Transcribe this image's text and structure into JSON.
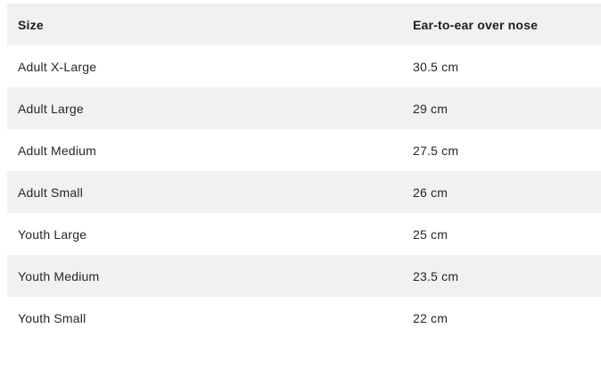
{
  "table": {
    "columns": [
      {
        "key": "size",
        "label": "Size"
      },
      {
        "key": "measurement",
        "label": "Ear-to-ear over nose"
      }
    ],
    "rows": [
      {
        "size": "Adult X-Large",
        "measurement": "30.5 cm"
      },
      {
        "size": "Adult Large",
        "measurement": "29 cm"
      },
      {
        "size": "Adult Medium",
        "measurement": "27.5 cm"
      },
      {
        "size": "Adult Small",
        "measurement": "26 cm"
      },
      {
        "size": "Youth Large",
        "measurement": "25 cm"
      },
      {
        "size": "Youth Medium",
        "measurement": "23.5 cm"
      },
      {
        "size": "Youth Small",
        "measurement": "22 cm"
      }
    ],
    "colors": {
      "stripe_bg": "#f1f1f1",
      "row_bg": "#ffffff",
      "text": "#262626"
    }
  }
}
